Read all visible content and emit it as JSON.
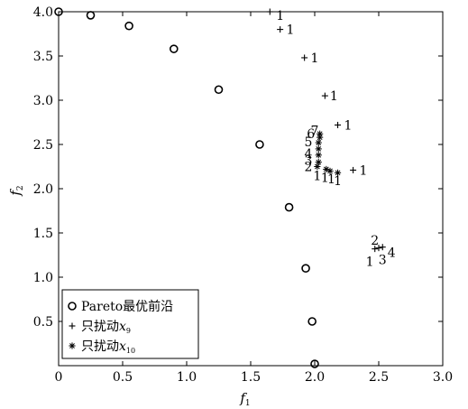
{
  "chart_data": {
    "type": "scatter",
    "title": "",
    "xlabel": {
      "base": "f",
      "sub": "1"
    },
    "ylabel": {
      "base": "f",
      "sub": "2"
    },
    "xlim": [
      0,
      3.0
    ],
    "ylim": [
      0,
      4.0
    ],
    "xticks": [
      0,
      0.5,
      1.0,
      1.5,
      2.0,
      2.5,
      3.0
    ],
    "xtick_labels": [
      "0",
      "0.5",
      "1.0",
      "1.5",
      "2.0",
      "2.5",
      "3.0"
    ],
    "yticks": [
      0.5,
      1.0,
      1.5,
      2.0,
      2.5,
      3.0,
      3.5,
      4.0
    ],
    "ytick_labels": [
      "0.5",
      "1.0",
      "1.5",
      "2.0",
      "2.5",
      "3.0",
      "3.5",
      "4.0"
    ],
    "grid": false,
    "legend_position": "bottom-left",
    "series": [
      {
        "name": "Pareto最优前沿",
        "name_sub": "",
        "marker": "circle",
        "points": [
          [
            0.0,
            4.0
          ],
          [
            0.25,
            3.96
          ],
          [
            0.55,
            3.84
          ],
          [
            0.9,
            3.58
          ],
          [
            1.25,
            3.12
          ],
          [
            1.57,
            2.5
          ],
          [
            1.8,
            1.79
          ],
          [
            1.93,
            1.1
          ],
          [
            1.98,
            0.5
          ],
          [
            2.0,
            0.02
          ]
        ]
      },
      {
        "name": "只扰动x",
        "name_sub": "9",
        "marker": "plus",
        "points": [
          [
            1.65,
            4.0
          ],
          [
            1.73,
            3.8
          ],
          [
            1.92,
            3.48
          ],
          [
            2.08,
            3.05
          ],
          [
            2.18,
            2.72
          ],
          [
            2.3,
            2.21
          ],
          [
            2.47,
            1.32
          ],
          [
            2.5,
            1.33
          ],
          [
            2.53,
            1.34
          ]
        ]
      },
      {
        "name": "只扰动x",
        "name_sub": "10",
        "marker": "asterisk",
        "points": [
          [
            2.04,
            2.62
          ],
          [
            2.04,
            2.58
          ],
          [
            2.03,
            2.52
          ],
          [
            2.03,
            2.45
          ],
          [
            2.03,
            2.38
          ],
          [
            2.03,
            2.3
          ],
          [
            2.02,
            2.25
          ],
          [
            2.09,
            2.22
          ],
          [
            2.12,
            2.2
          ],
          [
            2.18,
            2.18
          ]
        ]
      }
    ],
    "annotations": [
      {
        "text": "1",
        "x": 1.73,
        "y": 3.96
      },
      {
        "text": "1",
        "x": 1.81,
        "y": 3.8
      },
      {
        "text": "1",
        "x": 2.0,
        "y": 3.48
      },
      {
        "text": "1",
        "x": 2.15,
        "y": 3.05
      },
      {
        "text": "1",
        "x": 2.26,
        "y": 2.72
      },
      {
        "text": "1",
        "x": 2.38,
        "y": 2.21
      },
      {
        "text": "7",
        "x": 2.0,
        "y": 2.66
      },
      {
        "text": "6",
        "x": 1.97,
        "y": 2.62
      },
      {
        "text": "5",
        "x": 1.95,
        "y": 2.53
      },
      {
        "text": "4",
        "x": 1.95,
        "y": 2.4
      },
      {
        "text": "3",
        "x": 1.95,
        "y": 2.32
      },
      {
        "text": "2",
        "x": 1.95,
        "y": 2.25
      },
      {
        "text": "1",
        "x": 2.02,
        "y": 2.15
      },
      {
        "text": "1",
        "x": 2.08,
        "y": 2.13
      },
      {
        "text": "1",
        "x": 2.13,
        "y": 2.11
      },
      {
        "text": "1",
        "x": 2.18,
        "y": 2.09
      },
      {
        "text": "2",
        "x": 2.47,
        "y": 1.42
      },
      {
        "text": "1",
        "x": 2.43,
        "y": 1.18
      },
      {
        "text": "3",
        "x": 2.53,
        "y": 1.2
      },
      {
        "text": "4",
        "x": 2.6,
        "y": 1.28
      }
    ]
  }
}
